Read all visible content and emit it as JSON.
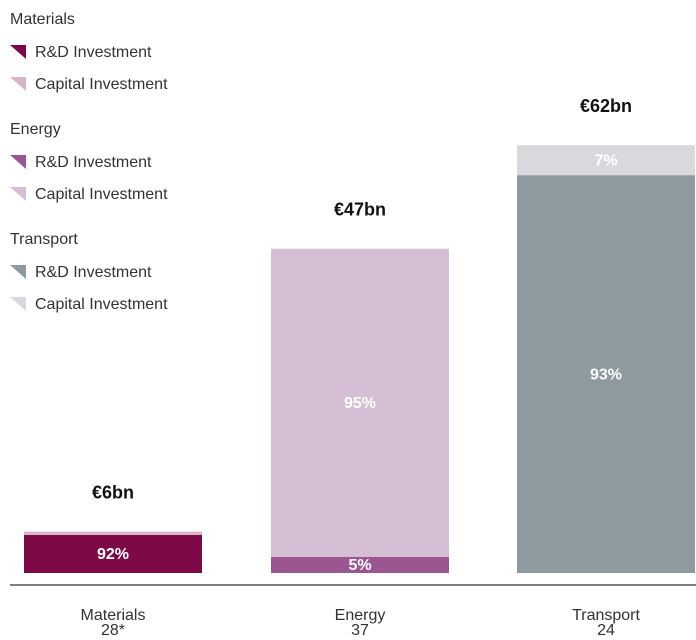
{
  "chart_data": {
    "type": "bar",
    "stacked": true,
    "categories": [
      "Materials",
      "Energy",
      "Transport"
    ],
    "sublabels": [
      "28*",
      "37",
      "24"
    ],
    "totals": {
      "values": [
        6,
        47,
        62
      ],
      "value_labels": [
        "€6bn",
        "€47bn",
        "€62bn"
      ]
    },
    "series": [
      {
        "name": "R&D Investment",
        "colors": [
          "#7d0a46",
          "#9b5591",
          "#8e9aa0"
        ],
        "values": [
          92,
          5,
          93
        ],
        "value_labels": [
          "92%",
          "5%",
          "93%"
        ]
      },
      {
        "name": "Capital Investment",
        "colors": [
          "#d9b4c8",
          "#d5bfd4",
          "#d8d9dc"
        ],
        "values": [
          8,
          95,
          7
        ],
        "value_labels": [
          null,
          "95%",
          "7%"
        ]
      }
    ]
  }
}
